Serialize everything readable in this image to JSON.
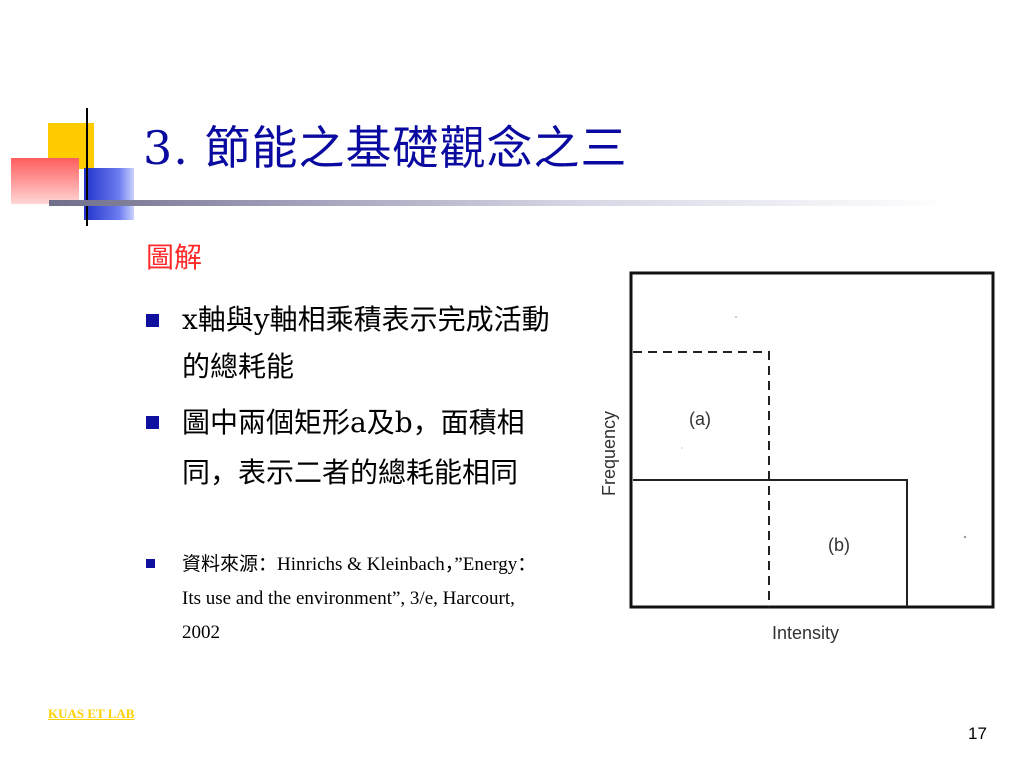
{
  "slide": {
    "title": "3. 節能之基礎觀念之三",
    "subtitle": "圖解",
    "bullets": [
      {
        "text": "x軸與y軸相乘積表示完成活動的總耗能"
      },
      {
        "text": "圖中兩個矩形a及b，面積相同，表示二者的總耗能相同"
      },
      {
        "text": "資料來源：Hinrichs & Kleinbach，”Energy：Its use and the environment”, 3/e, Harcourt, 2002"
      }
    ],
    "footer": "KUAS ET LAB",
    "page_number": "17"
  },
  "figure": {
    "xlabel": "Intensity",
    "ylabel": "Frequency",
    "rect_a_label": "(a)",
    "rect_b_label": "(b)"
  },
  "colors": {
    "title": "#0a0aa0",
    "subtitle": "#ff2a2a",
    "bullet": "#1010a0",
    "footer": "#ffd000"
  }
}
